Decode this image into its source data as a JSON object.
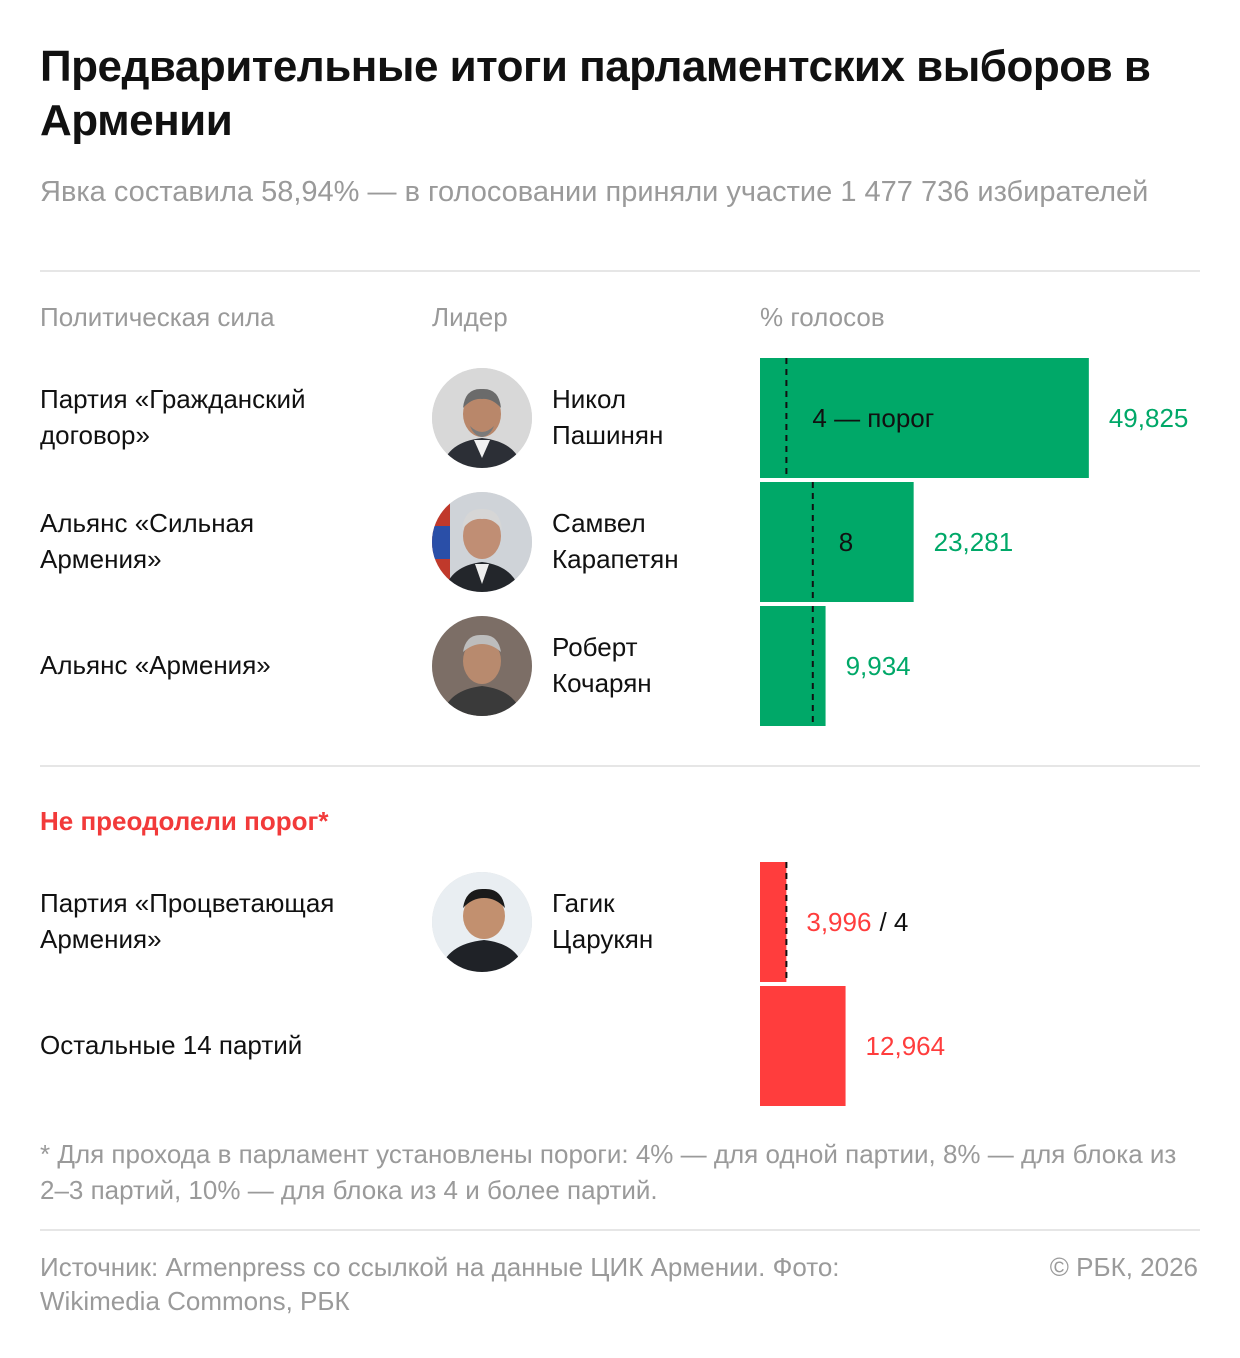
{
  "title": "Предварительные итоги парламентских выборов в Армении",
  "subtitle": "Явка составила 58,94% — в голосовании приняли участие 1 477 736 избирателей",
  "columns": {
    "party": "Политическая сила",
    "leader": "Лидер",
    "votes": "% голосов"
  },
  "section_failed": "Не преодолели порог*",
  "rows": [
    {
      "party": "Партия «Гражданский договор»",
      "leader": "Никол Пашинян",
      "avatar": "portrait-pashinyan"
    },
    {
      "party": "Альянс «Сильная Армения»",
      "leader": "Самвел Карапетян",
      "avatar": "portrait-karapetyan"
    },
    {
      "party": "Альянс «Армения»",
      "leader": "Роберт Кочарян",
      "avatar": "portrait-kocharyan"
    },
    {
      "party": "Партия «Процветающая Армения»",
      "leader": "Гагик Царукян",
      "avatar": "portrait-tsarukyan"
    },
    {
      "party": "Остальные 14 партий",
      "leader": "",
      "avatar": ""
    }
  ],
  "chart_data": {
    "type": "bar",
    "orientation": "horizontal",
    "categories": [
      "Партия «Гражданский договор»",
      "Альянс «Сильная Армения»",
      "Альянс «Армения»",
      "Партия «Процветающая Армения»",
      "Остальные 14 партий"
    ],
    "values": [
      49.825,
      23.281,
      9.934,
      3.996,
      12.964
    ],
    "value_labels": [
      "49,825",
      "23,281",
      "9,934",
      "3,996",
      "12,964"
    ],
    "passed": [
      true,
      true,
      true,
      false,
      false
    ],
    "thresholds": [
      4,
      8,
      8,
      4,
      null
    ],
    "threshold_labels": [
      "4 — порог",
      "8",
      "",
      "/ 4",
      ""
    ],
    "xlim": [
      0,
      50
    ],
    "colors": {
      "passed": "#00a868",
      "failed": "#ff3d3d",
      "threshold_line": "#111111"
    }
  },
  "footnote": "* Для прохода в парламент установлены пороги: 4% — для одной партии, 8% — для блока из 2–3 партий, 10% — для блока из 4 и более партий.",
  "source": "Источник: Armenpress со ссылкой на данные ЦИК Армении. Фото: Wikimedia Commons, РБК",
  "copyright": "© РБК, 2026"
}
